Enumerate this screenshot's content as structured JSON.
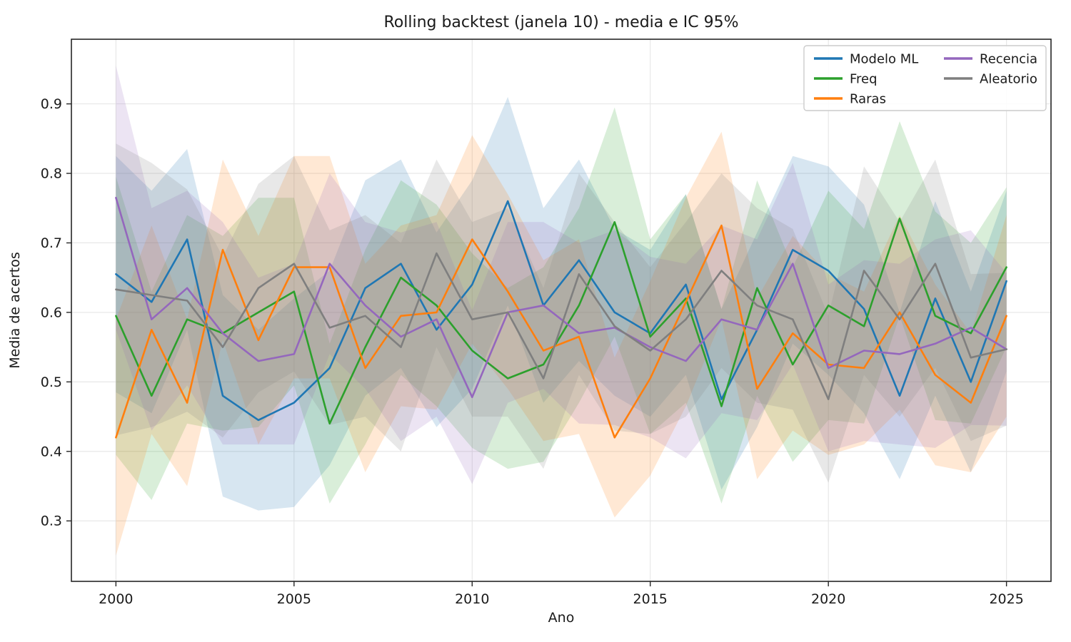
{
  "chart_data": {
    "type": "line",
    "title": "Rolling backtest (janela 10) - media e IC 95%",
    "xlabel": "Ano",
    "ylabel": "Media de acertos",
    "x": [
      2000,
      2001,
      2002,
      2003,
      2004,
      2005,
      2006,
      2007,
      2008,
      2009,
      2010,
      2011,
      2012,
      2013,
      2014,
      2015,
      2016,
      2017,
      2018,
      2019,
      2020,
      2021,
      2022,
      2023,
      2024,
      2025
    ],
    "xticks": [
      2000,
      2005,
      2010,
      2015,
      2020,
      2025
    ],
    "yticks": [
      0.3,
      0.4,
      0.5,
      0.6,
      0.7,
      0.8,
      0.9
    ],
    "xlim": [
      1998.75,
      2026.25
    ],
    "ylim": [
      0.213,
      0.993
    ],
    "grid": true,
    "band_alpha": 0.18,
    "legend_position": "upper right",
    "legend_columns": [
      [
        0,
        1,
        2
      ],
      [
        3,
        4
      ]
    ],
    "series": [
      {
        "name": "Modelo ML",
        "color": "#1f77b4",
        "values": [
          0.655,
          0.615,
          0.705,
          0.48,
          0.445,
          0.47,
          0.52,
          0.635,
          0.67,
          0.575,
          0.64,
          0.76,
          0.61,
          0.675,
          0.6,
          0.57,
          0.64,
          0.475,
          0.575,
          0.69,
          0.66,
          0.605,
          0.48,
          0.62,
          0.5,
          0.645
        ],
        "ci_lo": [
          0.485,
          0.455,
          0.575,
          0.335,
          0.315,
          0.32,
          0.38,
          0.48,
          0.52,
          0.435,
          0.49,
          0.61,
          0.47,
          0.53,
          0.48,
          0.45,
          0.51,
          0.345,
          0.435,
          0.555,
          0.51,
          0.455,
          0.36,
          0.48,
          0.37,
          0.515
        ],
        "ci_hi": [
          0.825,
          0.775,
          0.835,
          0.625,
          0.575,
          0.62,
          0.66,
          0.79,
          0.82,
          0.715,
          0.79,
          0.91,
          0.75,
          0.82,
          0.72,
          0.69,
          0.77,
          0.605,
          0.715,
          0.825,
          0.81,
          0.755,
          0.6,
          0.76,
          0.63,
          0.775
        ]
      },
      {
        "name": "Freq",
        "color": "#2ca02c",
        "values": [
          0.595,
          0.48,
          0.59,
          0.57,
          0.6,
          0.63,
          0.44,
          0.55,
          0.65,
          0.61,
          0.545,
          0.505,
          0.525,
          0.61,
          0.73,
          0.565,
          0.62,
          0.465,
          0.635,
          0.525,
          0.61,
          0.58,
          0.735,
          0.595,
          0.57,
          0.665
        ],
        "ci_lo": [
          0.395,
          0.33,
          0.44,
          0.43,
          0.435,
          0.495,
          0.325,
          0.41,
          0.51,
          0.465,
          0.405,
          0.375,
          0.385,
          0.47,
          0.565,
          0.425,
          0.47,
          0.325,
          0.48,
          0.385,
          0.445,
          0.44,
          0.595,
          0.445,
          0.44,
          0.55
        ],
        "ci_hi": [
          0.795,
          0.63,
          0.74,
          0.71,
          0.765,
          0.765,
          0.555,
          0.69,
          0.79,
          0.755,
          0.685,
          0.635,
          0.665,
          0.75,
          0.895,
          0.705,
          0.77,
          0.605,
          0.79,
          0.665,
          0.775,
          0.72,
          0.875,
          0.745,
          0.7,
          0.78
        ]
      },
      {
        "name": "Raras",
        "color": "#ff7f0e",
        "values": [
          0.42,
          0.575,
          0.47,
          0.69,
          0.56,
          0.665,
          0.665,
          0.52,
          0.595,
          0.6,
          0.705,
          0.63,
          0.545,
          0.565,
          0.42,
          0.505,
          0.615,
          0.725,
          0.49,
          0.57,
          0.525,
          0.52,
          0.6,
          0.51,
          0.47,
          0.595
        ],
        "ci_lo": [
          0.25,
          0.425,
          0.35,
          0.56,
          0.41,
          0.505,
          0.505,
          0.37,
          0.465,
          0.46,
          0.555,
          0.49,
          0.415,
          0.425,
          0.305,
          0.365,
          0.465,
          0.59,
          0.36,
          0.43,
          0.395,
          0.41,
          0.46,
          0.38,
          0.37,
          0.45
        ],
        "ci_hi": [
          0.59,
          0.725,
          0.59,
          0.82,
          0.71,
          0.825,
          0.825,
          0.67,
          0.725,
          0.74,
          0.855,
          0.77,
          0.675,
          0.705,
          0.535,
          0.645,
          0.765,
          0.86,
          0.62,
          0.71,
          0.655,
          0.63,
          0.74,
          0.64,
          0.57,
          0.74
        ]
      },
      {
        "name": "Recencia",
        "color": "#9467bd",
        "values": [
          0.765,
          0.59,
          0.635,
          0.57,
          0.53,
          0.54,
          0.67,
          0.61,
          0.565,
          0.59,
          0.478,
          0.6,
          0.61,
          0.57,
          0.578,
          0.55,
          0.53,
          0.59,
          0.575,
          0.67,
          0.52,
          0.545,
          0.54,
          0.555,
          0.578,
          0.547
        ],
        "ci_lo": [
          0.575,
          0.43,
          0.495,
          0.41,
          0.41,
          0.41,
          0.54,
          0.49,
          0.415,
          0.45,
          0.353,
          0.47,
          0.49,
          0.44,
          0.438,
          0.42,
          0.39,
          0.455,
          0.445,
          0.525,
          0.4,
          0.415,
          0.41,
          0.405,
          0.438,
          0.437
        ],
        "ci_hi": [
          0.955,
          0.75,
          0.775,
          0.73,
          0.65,
          0.67,
          0.8,
          0.73,
          0.715,
          0.73,
          0.603,
          0.73,
          0.73,
          0.7,
          0.718,
          0.68,
          0.67,
          0.725,
          0.705,
          0.815,
          0.64,
          0.675,
          0.67,
          0.705,
          0.718,
          0.657
        ]
      },
      {
        "name": "Aleatorio",
        "color": "#7f7f7f",
        "values": [
          0.633,
          0.625,
          0.617,
          0.55,
          0.635,
          0.67,
          0.578,
          0.595,
          0.55,
          0.685,
          0.59,
          0.6,
          0.505,
          0.655,
          0.58,
          0.545,
          0.59,
          0.66,
          0.61,
          0.59,
          0.475,
          0.66,
          0.59,
          0.67,
          0.535,
          0.547
        ],
        "ci_lo": [
          0.423,
          0.435,
          0.457,
          0.42,
          0.485,
          0.515,
          0.438,
          0.45,
          0.4,
          0.55,
          0.45,
          0.45,
          0.375,
          0.51,
          0.43,
          0.425,
          0.45,
          0.52,
          0.47,
          0.46,
          0.355,
          0.51,
          0.45,
          0.52,
          0.415,
          0.437
        ],
        "ci_hi": [
          0.843,
          0.815,
          0.777,
          0.68,
          0.785,
          0.825,
          0.718,
          0.74,
          0.7,
          0.82,
          0.73,
          0.75,
          0.635,
          0.8,
          0.73,
          0.665,
          0.73,
          0.8,
          0.75,
          0.72,
          0.595,
          0.81,
          0.73,
          0.82,
          0.655,
          0.657
        ]
      }
    ],
    "colors": {
      "grid": "#e5e5e5",
      "spine": "#262626",
      "legend_border": "#cccccc",
      "background": "#ffffff"
    }
  }
}
